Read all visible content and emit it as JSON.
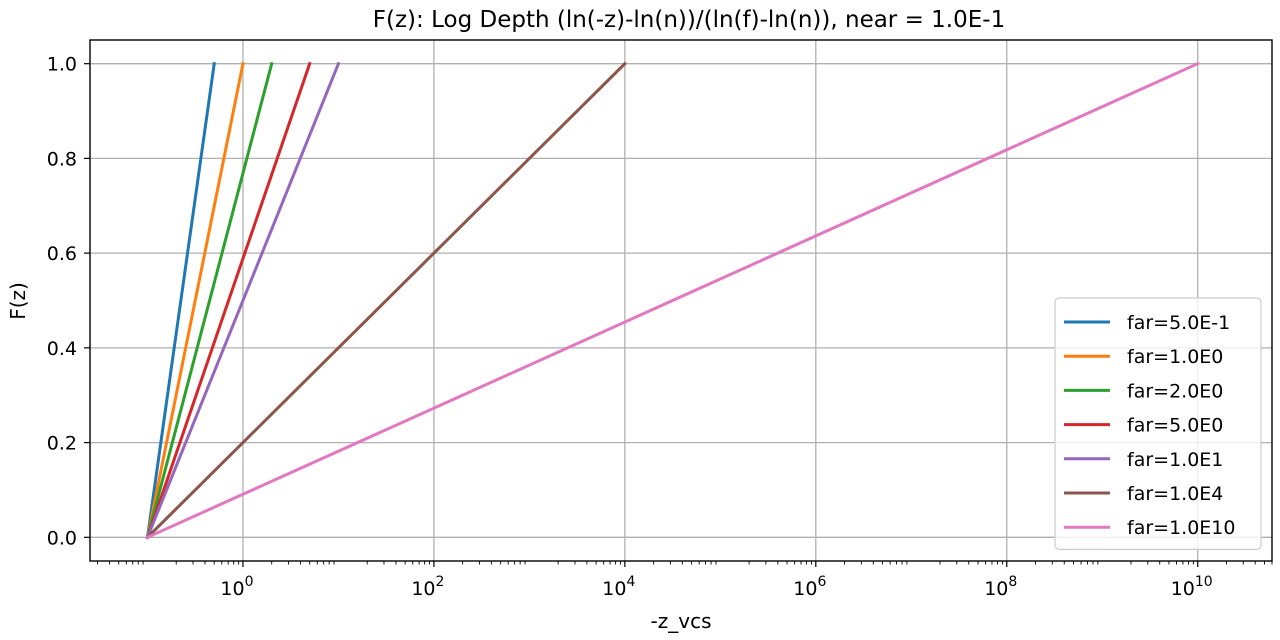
{
  "chart_data": {
    "type": "line",
    "title": "F(z): Log Depth (ln(-z)-ln(n))/(ln(f)-ln(n)), near = 1.0E-1",
    "xlabel": "-z_vcs",
    "ylabel": "F(z)",
    "xscale": "log",
    "xlim": [
      0.025,
      60000000000
    ],
    "ylim": [
      -0.05,
      1.05
    ],
    "x_ticks": [
      {
        "value": 1,
        "base": "10",
        "exp": "0"
      },
      {
        "value": 100,
        "base": "10",
        "exp": "2"
      },
      {
        "value": 10000,
        "base": "10",
        "exp": "4"
      },
      {
        "value": 1000000,
        "base": "10",
        "exp": "6"
      },
      {
        "value": 100000000,
        "base": "10",
        "exp": "8"
      },
      {
        "value": 10000000000,
        "base": "10",
        "exp": "10"
      }
    ],
    "y_ticks": [
      "0.0",
      "0.2",
      "0.4",
      "0.6",
      "0.8",
      "1.0"
    ],
    "grid": true,
    "legend_position": "lower-right",
    "near": 0.1,
    "series": [
      {
        "name": "far=5.0E-1",
        "color": "#1f77b4",
        "x": [
          0.1,
          0.5
        ],
        "y": [
          0.0,
          1.0
        ]
      },
      {
        "name": "far=1.0E0",
        "color": "#ff7f0e",
        "x": [
          0.1,
          1.0
        ],
        "y": [
          0.0,
          1.0
        ]
      },
      {
        "name": "far=2.0E0",
        "color": "#2ca02c",
        "x": [
          0.1,
          2.0
        ],
        "y": [
          0.0,
          1.0
        ]
      },
      {
        "name": "far=5.0E0",
        "color": "#d62728",
        "x": [
          0.1,
          5.0
        ],
        "y": [
          0.0,
          1.0
        ]
      },
      {
        "name": "far=1.0E1",
        "color": "#9467bd",
        "x": [
          0.1,
          10.0
        ],
        "y": [
          0.0,
          1.0
        ]
      },
      {
        "name": "far=1.0E4",
        "color": "#8c564b",
        "x": [
          0.1,
          10000.0
        ],
        "y": [
          0.0,
          1.0
        ]
      },
      {
        "name": "far=1.0E10",
        "color": "#e377c2",
        "x": [
          0.1,
          10000000000.0
        ],
        "y": [
          0.0,
          1.0
        ]
      }
    ]
  }
}
